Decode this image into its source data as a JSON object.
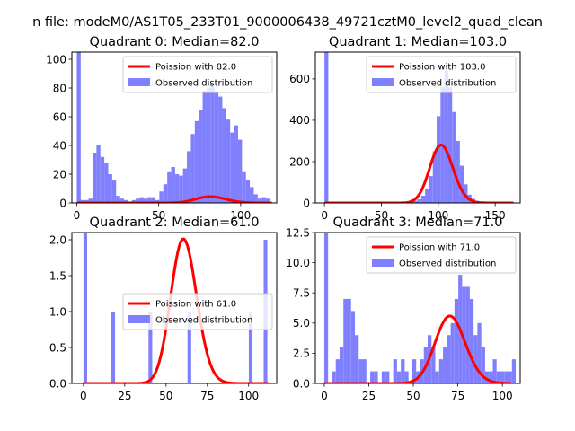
{
  "figure": {
    "suptitle": "n file: modeM0/AS1T05_233T01_9000006438_49721cztM0_level2_quad_clean"
  },
  "colors": {
    "poisson_line": "#ff0000",
    "histogram_bars": "#8080ff",
    "legend_frame": "#cccccc"
  },
  "chart_data": [
    {
      "type": "bar",
      "title": "Quadrant 0: Median=82.0",
      "xlim": [
        -3,
        122
      ],
      "ylim": [
        0,
        105
      ],
      "xticks": [
        0,
        50,
        100
      ],
      "xtick_labels": [
        "0",
        "50",
        "100"
      ],
      "yticks": [
        0,
        20,
        40,
        60,
        80,
        100
      ],
      "ytick_labels": [
        "0",
        "20",
        "40",
        "60",
        "80",
        "100"
      ],
      "legend": {
        "location": "upper right",
        "entries": [
          "Poission with 82.0",
          "Observed distribution"
        ]
      },
      "histogram": {
        "name": "Observed distribution",
        "bin_width": 2.4,
        "bin_starts": [
          0,
          2.4,
          4.8,
          7.2,
          9.6,
          12,
          14.4,
          16.8,
          19.2,
          21.6,
          24,
          26.4,
          28.8,
          31.2,
          33.6,
          36,
          38.4,
          40.8,
          43.2,
          45.6,
          48,
          50.4,
          52.8,
          55.2,
          57.6,
          60,
          62.4,
          64.8,
          67.2,
          69.6,
          72,
          74.4,
          76.8,
          79.2,
          81.6,
          84,
          86.4,
          88.8,
          91.2,
          93.6,
          96,
          98.4,
          100.8,
          103.2,
          105.6,
          108,
          110.4,
          112.8,
          115.2
        ],
        "counts": [
          105,
          2,
          2,
          3,
          35,
          40,
          32,
          28,
          20,
          16,
          5,
          3,
          2,
          1,
          2,
          3,
          4,
          3,
          4,
          4,
          2,
          8,
          13,
          22,
          25,
          20,
          19,
          24,
          36,
          48,
          57,
          65,
          78,
          80,
          83,
          77,
          74,
          66,
          58,
          49,
          54,
          44,
          22,
          16,
          11,
          6,
          3,
          4,
          3
        ]
      },
      "poisson": {
        "name": "Poission with 82.0",
        "lambda": 82.0,
        "scale": 100,
        "x_range": [
          0,
          119
        ]
      }
    },
    {
      "type": "bar",
      "title": "Quadrant 1: Median=103.0",
      "xlim": [
        -8,
        172
      ],
      "ylim": [
        0,
        730
      ],
      "xticks": [
        0,
        50,
        100,
        150
      ],
      "xtick_labels": [
        "0",
        "50",
        "100",
        "150"
      ],
      "yticks": [
        0,
        200,
        400,
        600
      ],
      "ytick_labels": [
        "0",
        "200",
        "400",
        "600"
      ],
      "legend": {
        "location": "upper right",
        "entries": [
          "Poission with 103.0",
          "Observed distribution"
        ]
      },
      "histogram": {
        "name": "Observed distribution",
        "bin_width": 3.4,
        "bin_starts": [
          0,
          3.4,
          6.8,
          10.2,
          13.6,
          17,
          20.4,
          23.8,
          27.2,
          30.6,
          34,
          37.4,
          40.8,
          44.2,
          47.6,
          51,
          54.4,
          57.8,
          61.2,
          64.6,
          68,
          71.4,
          74.8,
          78.2,
          81.6,
          85,
          88.4,
          91.8,
          95.2,
          98.6,
          102,
          105.4,
          108.8,
          112.2,
          115.6,
          119,
          122.4,
          125.8,
          129.2,
          132.6,
          136,
          139.4,
          142.8,
          146.2,
          149.6,
          153,
          156.4,
          159.8,
          163.2
        ],
        "counts": [
          730,
          0,
          0,
          0,
          0,
          0,
          0,
          0,
          0,
          0,
          0,
          0,
          0,
          0,
          0,
          0,
          0,
          0,
          0,
          0,
          0,
          2,
          5,
          10,
          18,
          35,
          70,
          130,
          250,
          420,
          560,
          640,
          560,
          440,
          300,
          180,
          90,
          40,
          20,
          10,
          5,
          3,
          2,
          1,
          1,
          0,
          0,
          0,
          0
        ]
      },
      "poisson": {
        "name": "Poission with 103.0",
        "lambda": 103.0,
        "scale": 7130,
        "x_range": [
          0,
          166
        ]
      }
    },
    {
      "type": "bar",
      "title": "Quadrant 2: Median=61.0",
      "xlim": [
        -7,
        117
      ],
      "ylim": [
        0,
        2.1
      ],
      "xticks": [
        0,
        25,
        50,
        75,
        100
      ],
      "xtick_labels": [
        "0",
        "25",
        "50",
        "75",
        "100"
      ],
      "yticks": [
        0,
        0.5,
        1.0,
        1.5,
        2.0
      ],
      "ytick_labels": [
        "0.0",
        "0.5",
        "1.0",
        "1.5",
        "2.0"
      ],
      "legend": {
        "location": "center right",
        "entries": [
          "Poission with 61.0",
          "Observed distribution"
        ]
      },
      "histogram": {
        "name": "Observed distribution",
        "bin_width": 2.25,
        "bin_starts": [
          0,
          16.9,
          39.4,
          63.0,
          100.1,
          109.1
        ],
        "counts": [
          2.1,
          1,
          1,
          1,
          1,
          2
        ]
      },
      "poisson": {
        "name": "Poission with 61.0",
        "lambda": 61.0,
        "scale": 39.4,
        "x_range": [
          0,
          112
        ]
      }
    },
    {
      "type": "bar",
      "title": "Quadrant 3: Median=71.0",
      "xlim": [
        -5,
        110
      ],
      "ylim": [
        0,
        12.5
      ],
      "xticks": [
        0,
        25,
        50,
        75,
        100
      ],
      "xtick_labels": [
        "0",
        "25",
        "50",
        "75",
        "100"
      ],
      "yticks": [
        0,
        2.5,
        5.0,
        7.5,
        10.0,
        12.5
      ],
      "ytick_labels": [
        "0.0",
        "2.5",
        "5.0",
        "7.5",
        "10.0",
        "12.5"
      ],
      "legend": {
        "location": "upper right",
        "entries": [
          "Poission with 71.0",
          "Observed distribution"
        ]
      },
      "histogram": {
        "name": "Observed distribution",
        "bin_width": 2.15,
        "bin_starts": [
          0,
          2.15,
          4.3,
          6.45,
          8.6,
          10.75,
          12.9,
          15.05,
          17.2,
          19.35,
          21.5,
          23.65,
          25.8,
          27.95,
          30.1,
          32.25,
          34.4,
          36.55,
          38.7,
          40.85,
          43,
          45.15,
          47.3,
          49.45,
          51.6,
          53.75,
          55.9,
          58.05,
          60.2,
          62.35,
          64.5,
          66.65,
          68.8,
          70.95,
          73.1,
          75.25,
          77.4,
          79.55,
          81.7,
          83.85,
          86,
          88.15,
          90.3,
          92.45,
          94.6,
          96.75,
          98.9,
          101.05,
          103.2,
          105.35
        ],
        "counts": [
          12.5,
          0,
          1,
          2,
          3,
          7,
          7,
          6,
          4,
          2,
          2,
          0,
          1,
          1,
          0,
          1,
          1,
          0,
          2,
          1,
          2,
          1,
          0,
          2,
          1,
          2,
          3,
          4,
          3,
          1,
          2,
          3,
          4,
          5,
          7,
          9,
          8,
          8,
          7,
          4,
          5,
          3,
          1,
          1,
          2,
          1,
          1,
          1,
          1,
          2
        ]
      },
      "poisson": {
        "name": "Poission with 71.0",
        "lambda": 71.0,
        "scale": 118,
        "x_range": [
          0,
          105
        ]
      }
    }
  ]
}
